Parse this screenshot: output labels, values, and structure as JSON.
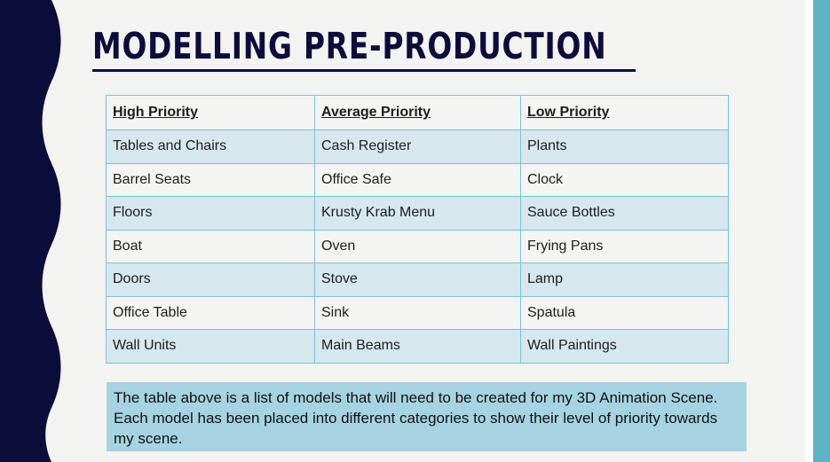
{
  "slide": {
    "title": "MODELLING PRE-PRODUCTION",
    "colors": {
      "title": "#0c0d3a",
      "left_band": "#0c0d3a",
      "right_band": "#5fb2c6",
      "table_border": "#7cc3d4",
      "row_shade": "#d6e7ee",
      "caption_bg": "#a6d3e1"
    }
  },
  "table": {
    "headers": [
      "High Priority",
      "Average  Priority",
      "Low Priority"
    ],
    "rows": [
      [
        "Tables and Chairs",
        "Cash Register",
        "Plants"
      ],
      [
        "Barrel Seats",
        "Office Safe",
        "Clock"
      ],
      [
        "Floors",
        "Krusty Krab Menu",
        "Sauce Bottles"
      ],
      [
        "Boat",
        "Oven",
        "Frying Pans"
      ],
      [
        "Doors",
        "Stove",
        "Lamp"
      ],
      [
        "Office Table",
        "Sink",
        "Spatula"
      ],
      [
        "Wall Units",
        "Main Beams",
        "Wall Paintings"
      ]
    ]
  },
  "caption": {
    "text": "The table above is a list of models that will need to be created for my 3D Animation Scene. Each model has been placed into different categories to show their level of priority towards my scene."
  }
}
